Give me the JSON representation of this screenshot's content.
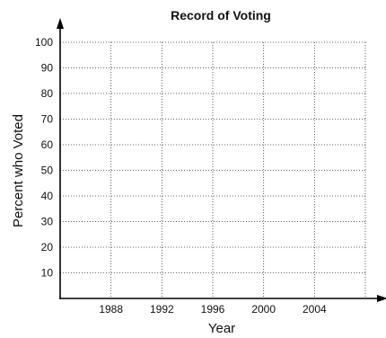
{
  "chart_data": {
    "type": "line",
    "title": "Record of Voting",
    "xlabel": "Year",
    "ylabel": "Percent who Voted",
    "x_ticks": [
      "1988",
      "1992",
      "1996",
      "2000",
      "2004"
    ],
    "y_ticks": [
      "10",
      "20",
      "30",
      "40",
      "50",
      "60",
      "70",
      "80",
      "90",
      "100"
    ],
    "xlim": [
      1984,
      2008
    ],
    "ylim": [
      0,
      100
    ],
    "grid": true,
    "series": []
  }
}
